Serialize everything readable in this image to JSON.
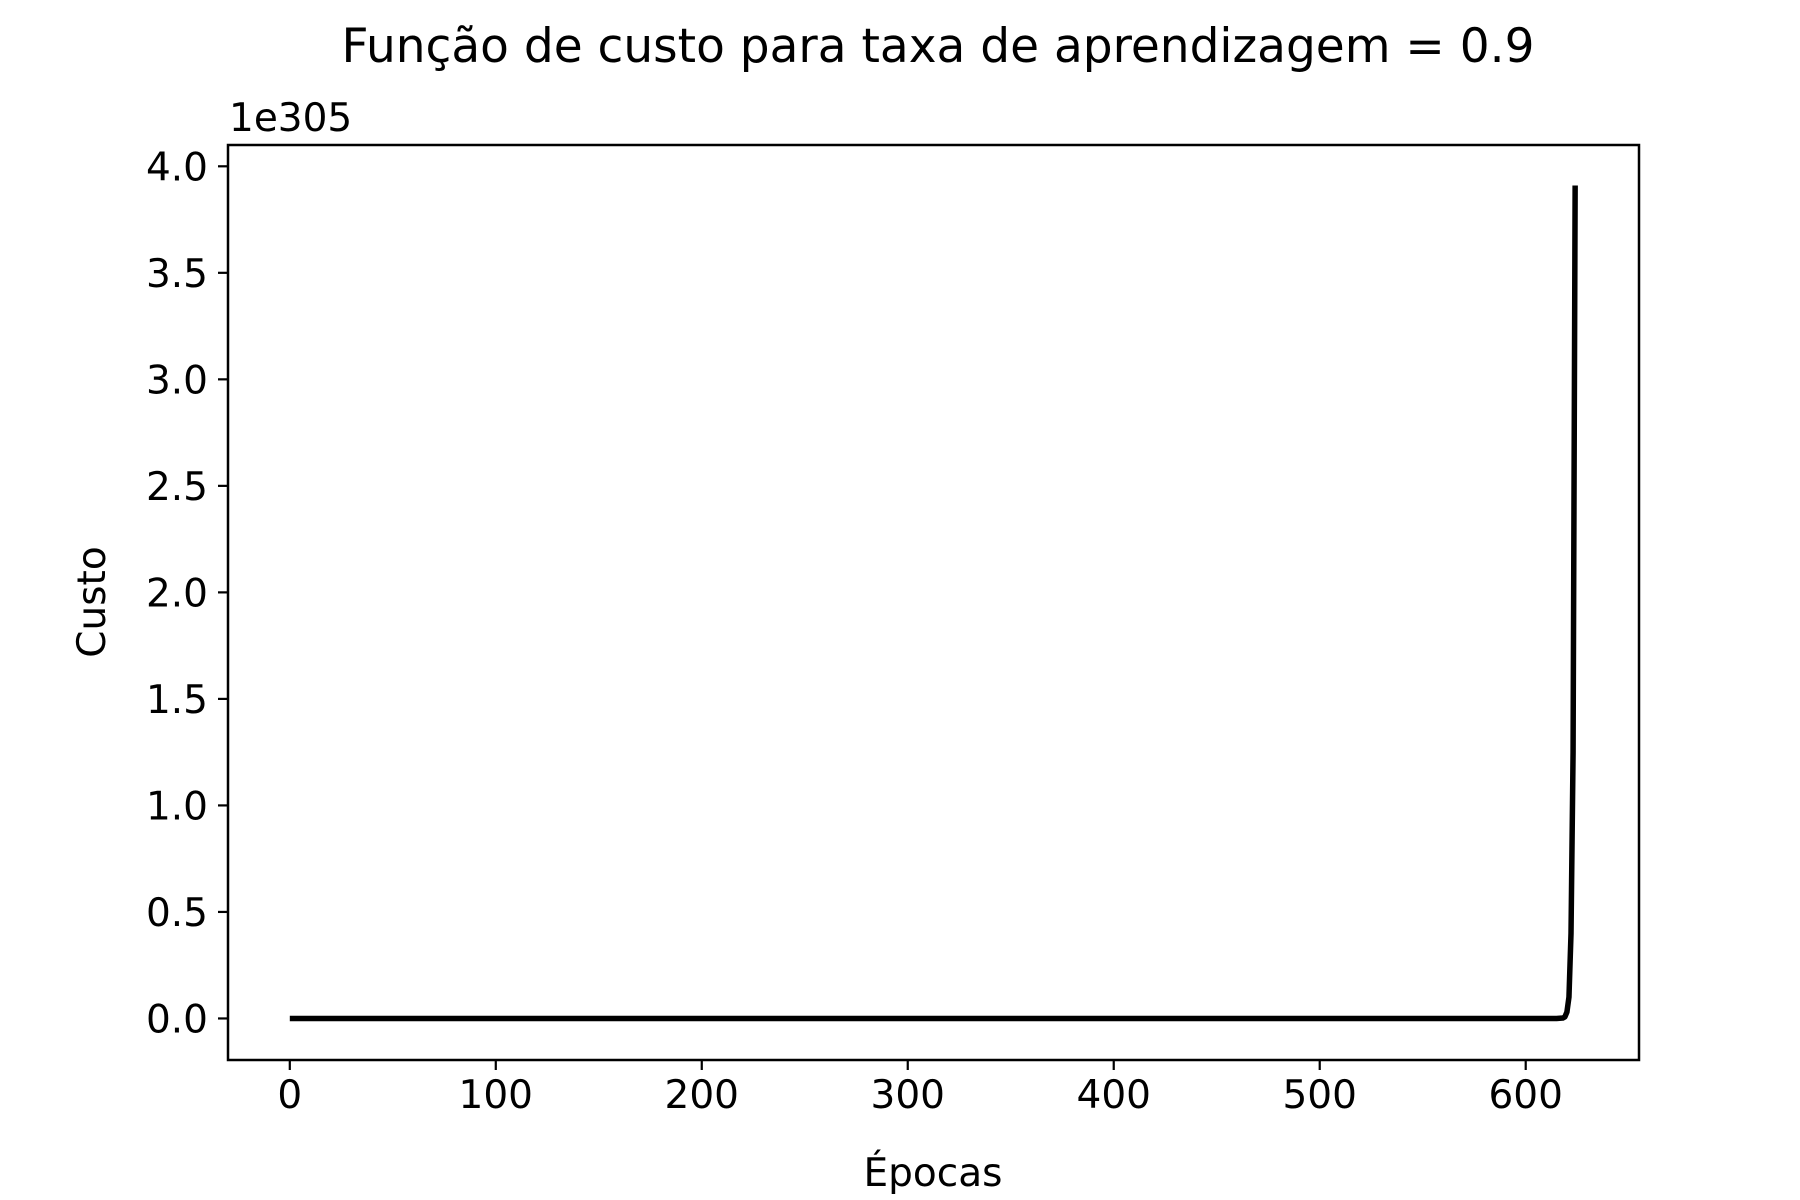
{
  "chart_data": {
    "type": "line",
    "title": "Função de custo para taxa de aprendizagem = 0.9",
    "xlabel": "Épocas",
    "ylabel": "Custo",
    "offset_text": "1e305",
    "xlim": [
      -30,
      655
    ],
    "ylim": [
      -0.195,
      4.1
    ],
    "x_ticks": [
      0,
      100,
      200,
      300,
      400,
      500,
      600
    ],
    "x_tick_labels": [
      "0",
      "100",
      "200",
      "300",
      "400",
      "500",
      "600"
    ],
    "y_ticks": [
      0.0,
      0.5,
      1.0,
      1.5,
      2.0,
      2.5,
      3.0,
      3.5,
      4.0
    ],
    "y_tick_labels": [
      "0.0",
      "0.5",
      "1.0",
      "1.5",
      "2.0",
      "2.5",
      "3.0",
      "3.5",
      "4.0"
    ],
    "y_scale_note": "values in units of 1e305",
    "grid": false,
    "line_color": "#000000",
    "series": [
      {
        "x": [
          0,
          100,
          200,
          300,
          400,
          500,
          600,
          615,
          618,
          619,
          620,
          621,
          622,
          623,
          624
        ],
        "values": [
          0,
          0,
          0,
          0,
          0,
          0,
          0,
          0,
          0.002,
          0.007,
          0.03,
          0.1,
          0.4,
          1.25,
          3.91
        ]
      }
    ]
  }
}
